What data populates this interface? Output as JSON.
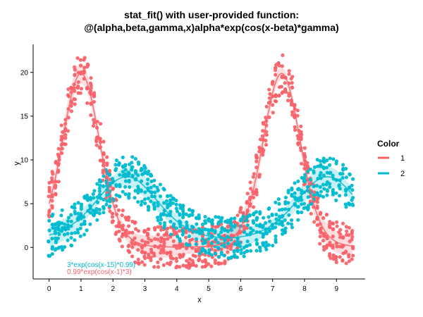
{
  "chart_data": {
    "type": "scatter",
    "title_line1": "stat_fit() with user-provided function:",
    "title_line2": "@(alpha,beta,gamma,x)alpha*exp(cos(x-beta)*gamma)",
    "xlabel": "x",
    "ylabel": "y",
    "xlim": [
      -0.5,
      9.9
    ],
    "ylim": [
      -3.6,
      23.2
    ],
    "x_ticks": [
      0,
      1,
      2,
      3,
      4,
      5,
      6,
      7,
      8,
      9
    ],
    "y_ticks": [
      0,
      5,
      10,
      15,
      20
    ],
    "grid": false,
    "legend": {
      "title": "Color",
      "position": "right",
      "entries": [
        {
          "label": "1",
          "color": "#F8636A"
        },
        {
          "label": "2",
          "color": "#00BACF"
        }
      ]
    },
    "series": [
      {
        "name": "1",
        "color": "#F8636A",
        "fit_params": {
          "alpha": 0.99,
          "beta": 1,
          "gamma": 3
        },
        "x_range": [
          0,
          9.5
        ],
        "point_spread": 2.4,
        "band_halfwidth": 1.2,
        "annotation": "0.99*exp(cos(x-1)*3)"
      },
      {
        "name": "2",
        "color": "#00BACF",
        "fit_params": {
          "alpha": 3,
          "beta": 15,
          "gamma": 0.99
        },
        "x_range": [
          0,
          9.5
        ],
        "point_spread": 2.4,
        "band_halfwidth": 1.2,
        "annotation": "3*exp(cos(x-15)*0.99)"
      }
    ]
  }
}
